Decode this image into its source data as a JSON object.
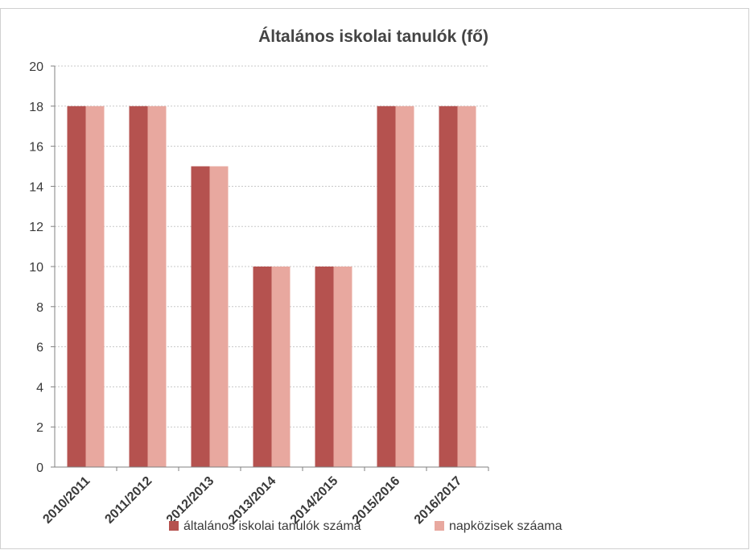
{
  "chart_data": {
    "type": "bar",
    "title": "Általános iskolai tanulók (fő)",
    "xlabel": "",
    "ylabel": "",
    "categories": [
      "2010/2011",
      "2011/2012",
      "2012/2013",
      "2013/2014",
      "2014/2015",
      "2015/2016",
      "2016/2017"
    ],
    "series": [
      {
        "name": "általános iskolai tanulók száma",
        "values": [
          18,
          18,
          15,
          10,
          10,
          18,
          18
        ],
        "color": "#b5524f"
      },
      {
        "name": "napközisek száama",
        "values": [
          18,
          18,
          15,
          10,
          10,
          18,
          18
        ],
        "color": "#e8a89f"
      }
    ],
    "ylim": [
      0,
      20
    ],
    "yticks": [
      "0",
      "2",
      "4",
      "6",
      "8",
      "10",
      "12",
      "14",
      "16",
      "18",
      "20"
    ],
    "grid": true,
    "legend": "bottom"
  }
}
